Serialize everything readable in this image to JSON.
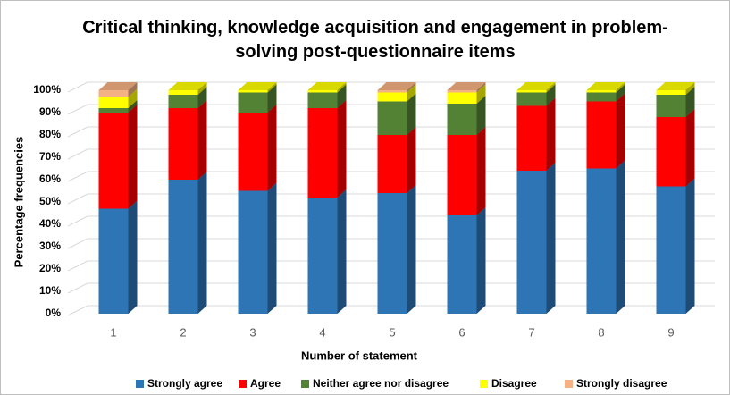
{
  "chart_data": {
    "type": "stacked-bar-3d",
    "title": "Critical thinking, knowledge acquisition and engagement in problem-solving post-questionnaire items",
    "xlabel": "Number of statement",
    "ylabel": "Percentage frequencies",
    "categories": [
      "1",
      "2",
      "3",
      "4",
      "5",
      "6",
      "7",
      "8",
      "9"
    ],
    "series": [
      {
        "name": "Strongly agree",
        "color": "#2e75b6",
        "values": [
          47,
          60,
          55,
          52,
          54,
          44,
          64,
          65,
          57
        ]
      },
      {
        "name": "Agree",
        "color": "#ff0000",
        "values": [
          43,
          32,
          35,
          40,
          26,
          36,
          29,
          30,
          31
        ]
      },
      {
        "name": "Neither agree nor disagree",
        "color": "#548235",
        "values": [
          2,
          6,
          9,
          7,
          15,
          14,
          6,
          4,
          10
        ]
      },
      {
        "name": "Disagree",
        "color": "#ffff00",
        "values": [
          5,
          2,
          1,
          1,
          4,
          5,
          1,
          1,
          2
        ]
      },
      {
        "name": "Strongly disagree",
        "color": "#f4b183",
        "values": [
          3,
          0,
          0,
          0,
          1,
          1,
          0,
          0,
          0
        ]
      }
    ],
    "ylim": [
      0,
      100
    ],
    "yticks": [
      {
        "value": 0,
        "label": "0%"
      },
      {
        "value": 10,
        "label": "10%"
      },
      {
        "value": 20,
        "label": "20%"
      },
      {
        "value": 30,
        "label": "30%"
      },
      {
        "value": 40,
        "label": "40%"
      },
      {
        "value": 50,
        "label": "50%"
      },
      {
        "value": 60,
        "label": "60%"
      },
      {
        "value": 70,
        "label": "70%"
      },
      {
        "value": 80,
        "label": "80%"
      },
      {
        "value": 90,
        "label": "90%"
      },
      {
        "value": 100,
        "label": "100%"
      }
    ],
    "grid": true,
    "legend": "bottom"
  }
}
